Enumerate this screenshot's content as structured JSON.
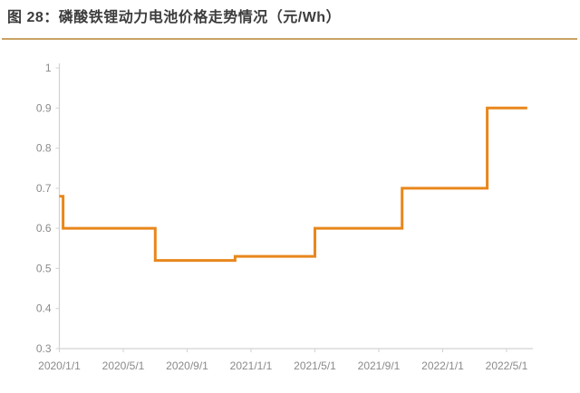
{
  "header": {
    "title": "图 28：磷酸铁锂动力电池价格走势情况（元/Wh）",
    "title_color": "#3c3c3c",
    "underline_color": "#c9a264"
  },
  "chart_data": {
    "type": "line",
    "line_style": "step-after",
    "title": "磷酸铁锂动力电池价格走势情况",
    "unit": "元/Wh",
    "xlabel": "",
    "ylabel": "",
    "ylim": [
      0.3,
      1
    ],
    "grid": false,
    "legend": "none",
    "line_color": "#e8871c",
    "axis_color": "#d2d2d2",
    "tick_label_color": "#8a8a8a",
    "series": [
      {
        "name": "磷酸铁锂动力电池价格（元/Wh）",
        "color": "#e8871c",
        "points": [
          {
            "date": "2020/1/1",
            "value": 0.68
          },
          {
            "date": "2020/1/8",
            "value": 0.6
          },
          {
            "date": "2020/7/1",
            "value": 0.52
          },
          {
            "date": "2020/12/1",
            "value": 0.53
          },
          {
            "date": "2021/5/1",
            "value": 0.6
          },
          {
            "date": "2021/10/15",
            "value": 0.7
          },
          {
            "date": "2022/3/25",
            "value": 0.9
          },
          {
            "date": "2022/6/10",
            "value": 0.9
          }
        ]
      }
    ],
    "x_ticks": [
      "2020/1/1",
      "2020/5/1",
      "2020/9/1",
      "2021/1/1",
      "2021/5/1",
      "2021/9/1",
      "2022/1/1",
      "2022/5/1"
    ],
    "y_ticks": [
      {
        "value": 0.3,
        "label": "0.3"
      },
      {
        "value": 0.4,
        "label": "0.4"
      },
      {
        "value": 0.5,
        "label": "0.5"
      },
      {
        "value": 0.6,
        "label": "0.6"
      },
      {
        "value": 0.7,
        "label": "0.7"
      },
      {
        "value": 0.8,
        "label": "0.8"
      },
      {
        "value": 0.9,
        "label": "0.9"
      },
      {
        "value": 1,
        "label": "1"
      }
    ]
  }
}
